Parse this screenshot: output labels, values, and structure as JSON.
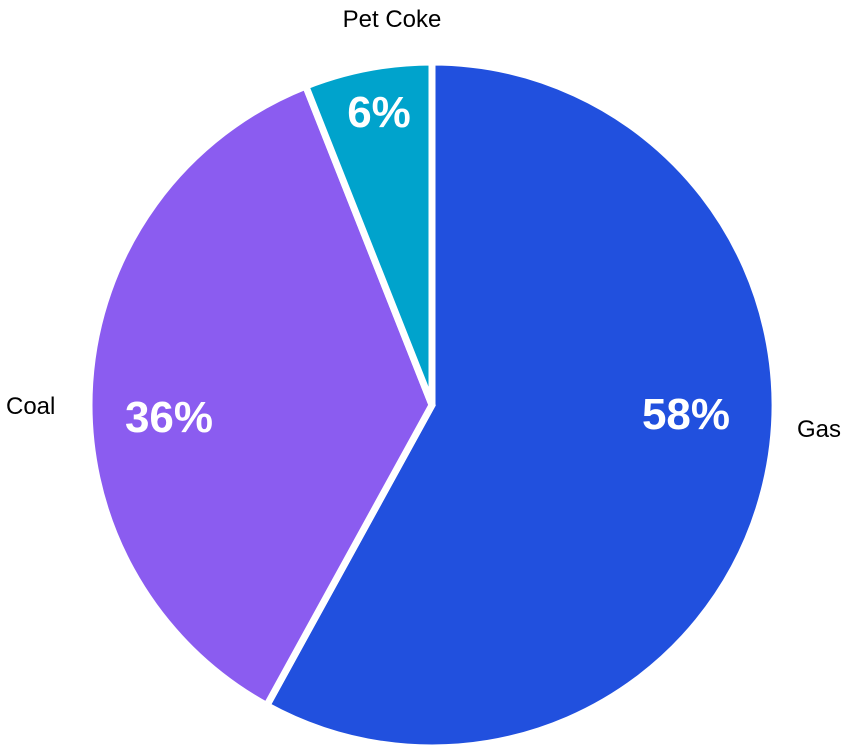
{
  "chart_data": {
    "type": "pie",
    "slices": [
      {
        "label": "Gas",
        "value": 58,
        "value_label": "58%",
        "color": "#2150de"
      },
      {
        "label": "Coal",
        "value": 36,
        "value_label": "36%",
        "color": "#8b5cf0"
      },
      {
        "label": "Pet Coke",
        "value": 6,
        "value_label": "6%",
        "color": "#00a3cc"
      }
    ],
    "start": "12 o'clock",
    "direction": "clockwise",
    "separator_color": "#ffffff"
  }
}
